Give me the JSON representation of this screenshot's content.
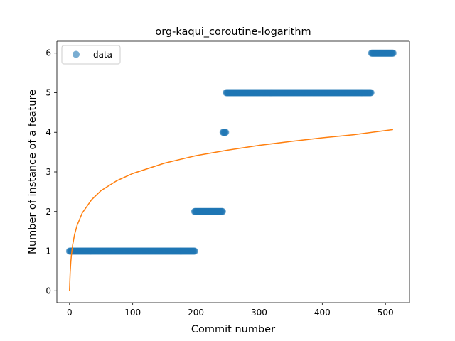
{
  "chart_data": {
    "type": "scatter",
    "title": "org-kaqui_coroutine-logarithm",
    "xlabel": "Commit number",
    "ylabel": "Number of instance of a feature",
    "xlim": [
      -20,
      538
    ],
    "ylim": [
      -0.3,
      6.3
    ],
    "xticks": [
      0,
      100,
      200,
      300,
      400,
      500
    ],
    "yticks": [
      0,
      1,
      2,
      3,
      4,
      5,
      6
    ],
    "grid": false,
    "legend": {
      "placement": "top-left",
      "entries": [
        "data"
      ]
    },
    "colors": {
      "scatter": "#1f77b4",
      "fit": "#ff7f0e"
    },
    "series": [
      {
        "name": "data",
        "kind": "scatter",
        "segments": [
          {
            "x_start": 0,
            "x_end": 198,
            "y": 1
          },
          {
            "x_start": 198,
            "x_end": 242,
            "y": 2
          },
          {
            "x_start": 243,
            "x_end": 247,
            "y": 4
          },
          {
            "x_start": 248,
            "x_end": 477,
            "y": 5
          },
          {
            "x_start": 478,
            "x_end": 512,
            "y": 6
          }
        ]
      },
      {
        "kind": "line",
        "model": "logarithmic",
        "x": [
          0,
          1,
          2,
          3,
          5,
          8,
          12,
          20,
          35,
          50,
          75,
          100,
          150,
          200,
          250,
          300,
          350,
          400,
          450,
          512
        ],
        "y": [
          0.0,
          0.45,
          0.71,
          0.9,
          1.16,
          1.42,
          1.65,
          1.96,
          2.3,
          2.53,
          2.78,
          2.96,
          3.22,
          3.41,
          3.55,
          3.67,
          3.77,
          3.86,
          3.94,
          4.07
        ]
      }
    ]
  }
}
